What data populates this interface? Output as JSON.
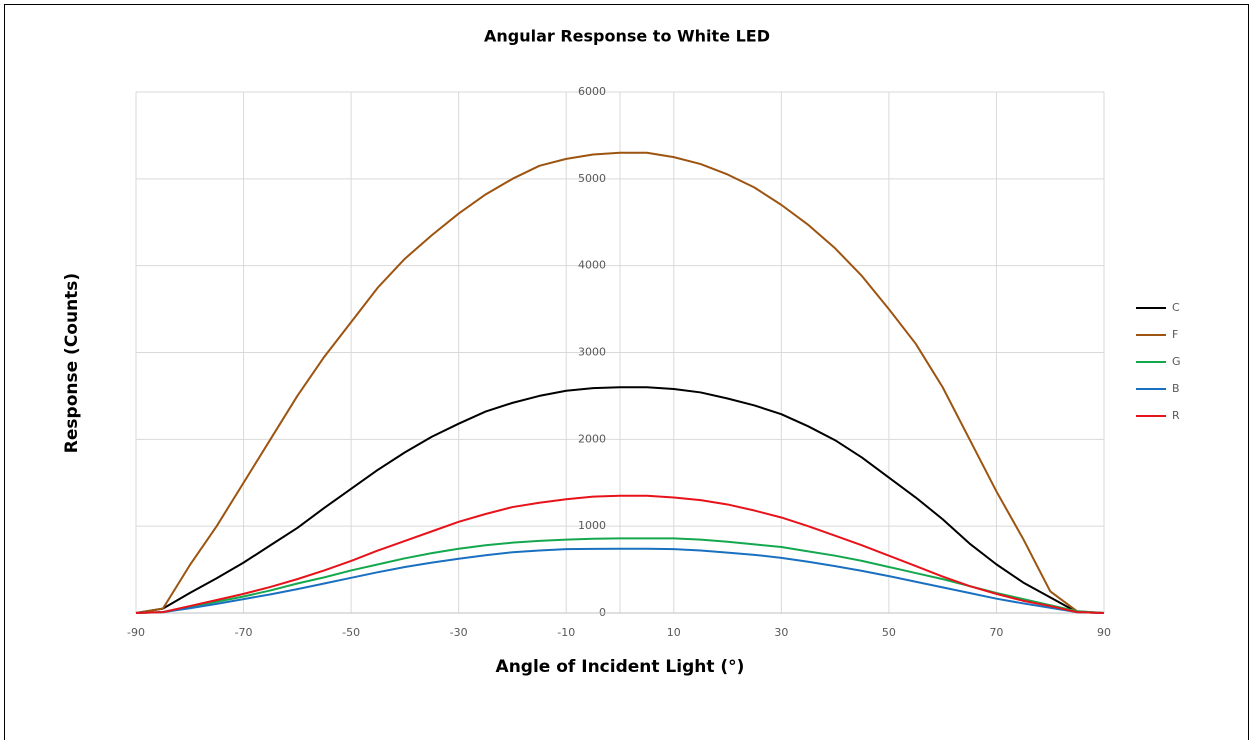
{
  "chart_data": {
    "type": "line",
    "title": "Angular Response to White LED",
    "x_label": "Angle of Incident Light (°)",
    "y_label": "Response (Counts)",
    "x": [
      -90,
      -85,
      -80,
      -75,
      -70,
      -65,
      -60,
      -55,
      -50,
      -45,
      -40,
      -35,
      -30,
      -25,
      -20,
      -15,
      -10,
      -5,
      0,
      5,
      10,
      15,
      20,
      25,
      30,
      35,
      40,
      45,
      50,
      55,
      60,
      65,
      70,
      75,
      80,
      85,
      90
    ],
    "series": [
      {
        "name": "C",
        "color": "#000000",
        "values": [
          0,
          50,
          230,
          400,
          580,
          780,
          980,
          1210,
          1430,
          1650,
          1850,
          2030,
          2180,
          2320,
          2420,
          2500,
          2560,
          2590,
          2600,
          2600,
          2580,
          2540,
          2470,
          2390,
          2290,
          2150,
          1990,
          1790,
          1560,
          1330,
          1080,
          800,
          560,
          350,
          180,
          10,
          0
        ]
      },
      {
        "name": "F",
        "color": "#9c5410",
        "values": [
          0,
          50,
          550,
          1000,
          1500,
          2000,
          2500,
          2950,
          3350,
          3750,
          4080,
          4350,
          4600,
          4820,
          5000,
          5150,
          5230,
          5280,
          5300,
          5300,
          5250,
          5170,
          5050,
          4900,
          4700,
          4470,
          4200,
          3880,
          3500,
          3100,
          2600,
          2000,
          1400,
          850,
          250,
          20,
          0
        ]
      },
      {
        "name": "G",
        "color": "#14a84e",
        "values": [
          0,
          10,
          70,
          130,
          190,
          260,
          340,
          410,
          490,
          560,
          630,
          690,
          740,
          780,
          810,
          830,
          845,
          855,
          860,
          860,
          860,
          845,
          820,
          790,
          760,
          710,
          660,
          600,
          530,
          460,
          390,
          310,
          230,
          160,
          90,
          20,
          0
        ]
      },
      {
        "name": "B",
        "color": "#1a70c0",
        "values": [
          0,
          10,
          55,
          105,
          160,
          215,
          275,
          340,
          405,
          470,
          530,
          580,
          625,
          665,
          700,
          720,
          735,
          738,
          740,
          740,
          735,
          720,
          695,
          670,
          635,
          590,
          540,
          485,
          425,
          360,
          295,
          230,
          165,
          110,
          60,
          10,
          0
        ]
      },
      {
        "name": "R",
        "color": "#e8121a",
        "values": [
          0,
          10,
          80,
          150,
          220,
          300,
          390,
          490,
          600,
          720,
          830,
          940,
          1050,
          1140,
          1220,
          1270,
          1310,
          1340,
          1350,
          1350,
          1330,
          1300,
          1250,
          1180,
          1100,
          1000,
          890,
          780,
          660,
          540,
          420,
          310,
          220,
          140,
          80,
          10,
          0
        ]
      }
    ],
    "xlim": [
      -90,
      90
    ],
    "xticks": [
      -90,
      -70,
      -50,
      -30,
      -10,
      10,
      30,
      50,
      70,
      90
    ],
    "ylim": [
      0,
      6000
    ],
    "yticks": [
      0,
      1000,
      2000,
      3000,
      4000,
      5000,
      6000
    ],
    "grid": true,
    "legend": "right"
  }
}
